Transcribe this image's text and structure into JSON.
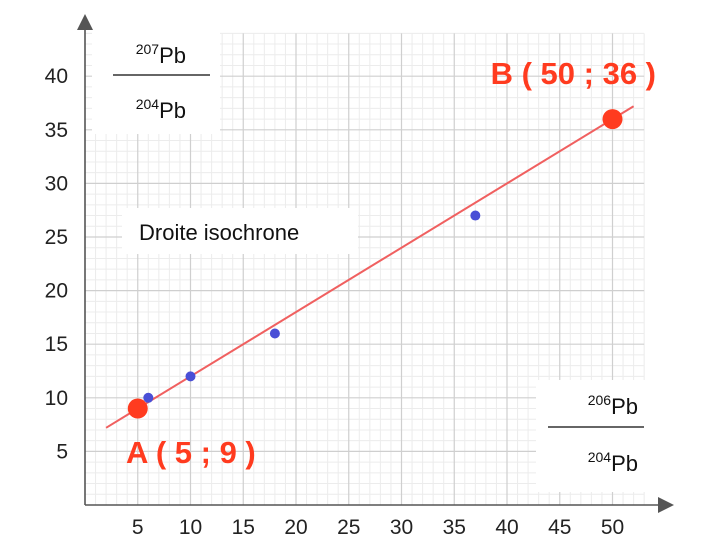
{
  "chart_data": {
    "type": "scatter",
    "title": "",
    "xlabel_fraction": {
      "numerator_mass": "206",
      "numerator_symbol": "Pb",
      "denominator_mass": "204",
      "denominator_symbol": "Pb"
    },
    "ylabel_fraction": {
      "numerator_mass": "207",
      "numerator_symbol": "Pb",
      "denominator_mass": "204",
      "denominator_symbol": "Pb"
    },
    "xlim": [
      0,
      53
    ],
    "ylim": [
      0,
      44
    ],
    "x_ticks": [
      5,
      10,
      15,
      20,
      25,
      30,
      35,
      40,
      45,
      50
    ],
    "y_ticks": [
      5,
      10,
      15,
      20,
      25,
      30,
      35,
      40
    ],
    "grid": true,
    "samples": {
      "color": "#4a4fd6",
      "points": [
        {
          "x": 6,
          "y": 10
        },
        {
          "x": 10,
          "y": 12
        },
        {
          "x": 18,
          "y": 16
        },
        {
          "x": 37,
          "y": 27
        }
      ]
    },
    "line": {
      "name": "Droite isochrone",
      "color": "#f06060",
      "x_range": [
        2,
        52
      ],
      "slope": 0.6,
      "intercept": 6
    },
    "labeled_points": [
      {
        "name": "A",
        "x": 5,
        "y": 9,
        "text": "A ( 5 ; 9 )",
        "color": "#ff3b1f"
      },
      {
        "name": "B",
        "x": 50,
        "y": 36,
        "text": "B ( 50 ; 36 )",
        "color": "#ff3b1f"
      }
    ]
  }
}
